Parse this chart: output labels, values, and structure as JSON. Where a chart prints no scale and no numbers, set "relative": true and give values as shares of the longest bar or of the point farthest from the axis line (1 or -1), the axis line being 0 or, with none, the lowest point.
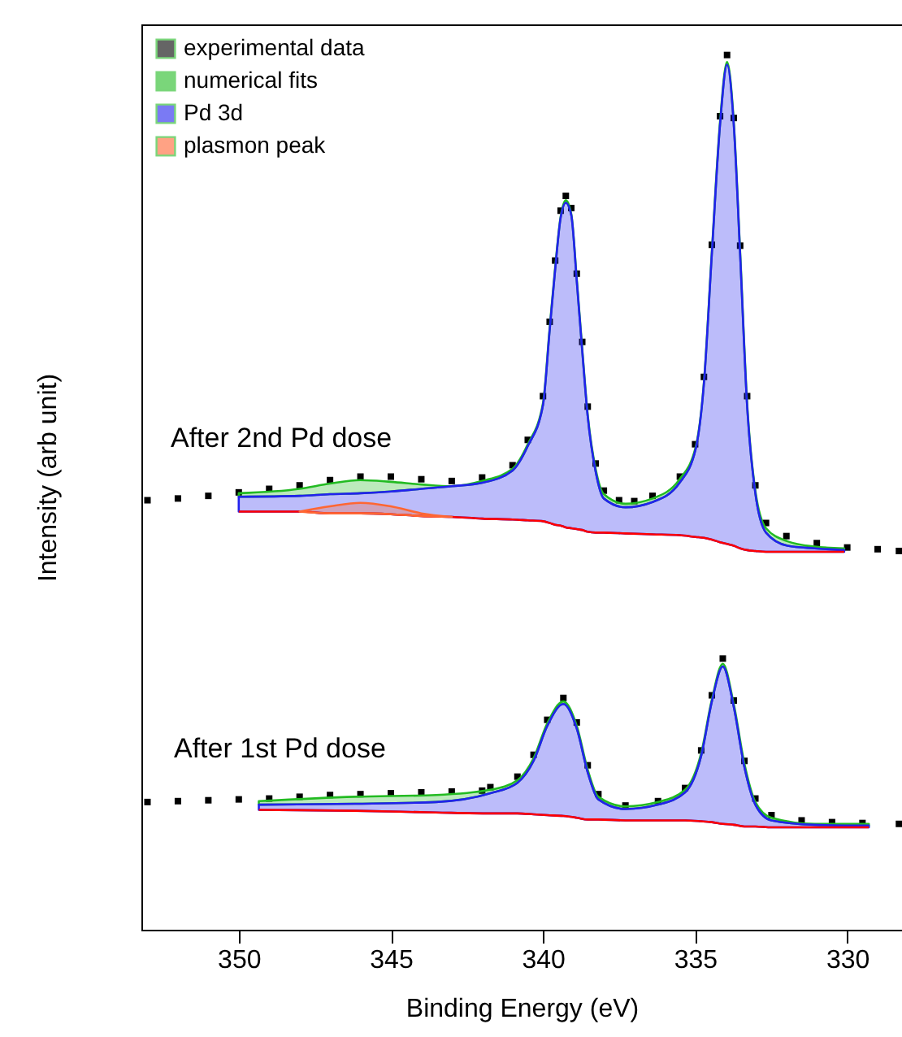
{
  "chart_data": {
    "type": "area",
    "relative": true,
    "xlabel": "Binding Energy (eV)",
    "ylabel": "Intensity (arb unit)",
    "xlim": [
      353.2,
      328.2
    ],
    "xticks": [
      350,
      345,
      340,
      335,
      330
    ],
    "tick_labels": "x",
    "legend": "top left",
    "annotations": [
      "After 2nd Pd dose",
      "After 1st Pd dose"
    ],
    "series": [
      {
        "name": "experimental data",
        "color": "#000000",
        "type": "scatter",
        "marker": "square",
        "x": [
          353,
          352,
          351,
          350,
          349,
          348,
          347,
          346,
          345,
          344,
          343,
          342,
          341,
          340.5,
          340,
          339.78,
          339.6,
          339.42,
          339.25,
          339.07,
          338.89,
          338.71,
          338.53,
          338.27,
          338,
          337.5,
          337,
          336.4,
          335.5,
          335,
          334.71,
          334.45,
          334.18,
          333.95,
          333.73,
          333.52,
          333.29,
          333.02,
          332.67,
          332,
          331,
          330,
          329,
          328.3
        ],
        "values": [
          0.491,
          0.493,
          0.496,
          0.5,
          0.504,
          0.508,
          0.514,
          0.518,
          0.518,
          0.515,
          0.513,
          0.517,
          0.531,
          0.56,
          0.61,
          0.695,
          0.765,
          0.822,
          0.839,
          0.825,
          0.75,
          0.672,
          0.598,
          0.533,
          0.502,
          0.491,
          0.49,
          0.496,
          0.518,
          0.555,
          0.632,
          0.783,
          0.93,
          1.0,
          0.928,
          0.782,
          0.61,
          0.508,
          0.465,
          0.45,
          0.442,
          0.437,
          0.435,
          0.433
        ]
      },
      {
        "name": "numerical fits",
        "color": "#22bb22",
        "x": [
          350,
          348,
          347,
          346,
          345,
          344,
          343,
          342,
          341,
          340.5,
          340,
          339.78,
          339.6,
          339.42,
          339.25,
          339.07,
          338.89,
          338.71,
          338.53,
          338.27,
          338,
          337.29,
          336.4,
          335.51,
          334.98,
          334.71,
          334.45,
          334.18,
          333.95,
          333.73,
          333.52,
          333.29,
          333.02,
          332.67,
          331.96,
          331.07,
          330.1
        ],
        "values": [
          0.499,
          0.504,
          0.51,
          0.514,
          0.512,
          0.509,
          0.507,
          0.513,
          0.527,
          0.555,
          0.602,
          0.688,
          0.757,
          0.815,
          0.834,
          0.818,
          0.744,
          0.664,
          0.589,
          0.527,
          0.498,
          0.487,
          0.493,
          0.515,
          0.552,
          0.626,
          0.775,
          0.924,
          0.992,
          0.924,
          0.775,
          0.602,
          0.502,
          0.459,
          0.444,
          0.438,
          0.436
        ]
      },
      {
        "name": "Pd 3d",
        "color": "#2222ee",
        "x": [
          350,
          348,
          347,
          346,
          345,
          344,
          343,
          342,
          341,
          340.5,
          340,
          339.78,
          339.6,
          339.42,
          339.25,
          339.07,
          338.89,
          338.71,
          338.53,
          338.27,
          338,
          337.29,
          336.4,
          335.51,
          334.98,
          334.71,
          334.45,
          334.18,
          333.95,
          333.73,
          333.52,
          333.29,
          333.02,
          332.67,
          331.96,
          331.07,
          330.1
        ],
        "values": [
          0.495,
          0.496,
          0.498,
          0.499,
          0.501,
          0.504,
          0.507,
          0.511,
          0.525,
          0.553,
          0.6,
          0.686,
          0.755,
          0.814,
          0.831,
          0.817,
          0.742,
          0.662,
          0.587,
          0.524,
          0.493,
          0.483,
          0.489,
          0.511,
          0.55,
          0.625,
          0.773,
          0.921,
          0.989,
          0.921,
          0.772,
          0.599,
          0.499,
          0.454,
          0.439,
          0.436,
          0.434
        ]
      },
      {
        "color": "#ff0000",
        "type": "line",
        "x": [
          350,
          348,
          347,
          346,
          345,
          344,
          343,
          342,
          341,
          340.5,
          340,
          339.78,
          339.6,
          339.42,
          339.25,
          339.07,
          338.89,
          338.71,
          338.53,
          338.27,
          338,
          337.29,
          336.4,
          335.51,
          334.98,
          334.71,
          334.45,
          334.18,
          333.95,
          333.73,
          333.52,
          333.29,
          333.02,
          332.67,
          331.96,
          331.07,
          330.1
        ],
        "values": [
          0.478,
          0.478,
          0.476,
          0.476,
          0.475,
          0.473,
          0.472,
          0.47,
          0.469,
          0.468,
          0.467,
          0.465,
          0.463,
          0.462,
          0.46,
          0.459,
          0.458,
          0.457,
          0.455,
          0.454,
          0.454,
          0.453,
          0.452,
          0.451,
          0.449,
          0.448,
          0.446,
          0.443,
          0.441,
          0.439,
          0.436,
          0.434,
          0.433,
          0.432,
          0.432,
          0.432,
          0.432
        ]
      },
      {
        "name": "plasmon peak",
        "color": "#ff6633",
        "x": [
          348,
          347,
          346,
          345,
          344,
          343
        ],
        "values": [
          0.478,
          0.484,
          0.488,
          0.484,
          0.476,
          0.472
        ]
      },
      {
        "color": "#000000",
        "type": "scatter",
        "marker": "square",
        "x": [
          353,
          352,
          351,
          350,
          349,
          348,
          347,
          346,
          345,
          344,
          343,
          342,
          341.73,
          340.84,
          340.31,
          339.86,
          339.33,
          338.89,
          338.53,
          338.18,
          337.29,
          336.22,
          335.33,
          334.8,
          334.45,
          334.09,
          333.73,
          333.38,
          333.02,
          332.49,
          331.5,
          330.5,
          329.5,
          328.3
        ],
        "values": [
          0.146,
          0.147,
          0.148,
          0.149,
          0.15,
          0.152,
          0.154,
          0.155,
          0.156,
          0.157,
          0.158,
          0.159,
          0.163,
          0.175,
          0.2,
          0.24,
          0.265,
          0.237,
          0.188,
          0.155,
          0.142,
          0.147,
          0.162,
          0.205,
          0.268,
          0.31,
          0.262,
          0.193,
          0.15,
          0.131,
          0.125,
          0.123,
          0.122,
          0.121
        ]
      },
      {
        "color": "#23bb22",
        "x": [
          349.34,
          346.18,
          343.52,
          341.73,
          340.84,
          340.31,
          339.86,
          339.33,
          338.89,
          338.53,
          338.18,
          337.29,
          336.22,
          335.33,
          334.8,
          334.45,
          334.09,
          333.73,
          333.38,
          333.02,
          332.49,
          331.07,
          329.29
        ],
        "values": [
          0.147,
          0.152,
          0.154,
          0.16,
          0.171,
          0.196,
          0.236,
          0.261,
          0.233,
          0.183,
          0.152,
          0.141,
          0.146,
          0.16,
          0.202,
          0.263,
          0.304,
          0.258,
          0.19,
          0.146,
          0.128,
          0.121,
          0.121
        ]
      },
      {
        "color": "#2222ed",
        "x": [
          349.34,
          346.18,
          343.52,
          341.73,
          340.84,
          340.31,
          339.86,
          339.33,
          338.89,
          338.53,
          338.18,
          337.29,
          336.22,
          335.33,
          334.8,
          334.45,
          334.09,
          333.73,
          333.38,
          333.02,
          332.49,
          331.07,
          329.29
        ],
        "values": [
          0.143,
          0.144,
          0.146,
          0.156,
          0.168,
          0.193,
          0.233,
          0.258,
          0.23,
          0.18,
          0.149,
          0.138,
          0.143,
          0.157,
          0.199,
          0.261,
          0.301,
          0.255,
          0.186,
          0.143,
          0.125,
          0.12,
          0.119
        ]
      },
      {
        "color": "#ff0000",
        "type": "line",
        "x": [
          349.34,
          346.18,
          343.52,
          341.73,
          340.84,
          340.31,
          339.86,
          339.33,
          338.89,
          338.53,
          338.18,
          337.29,
          336.22,
          335.33,
          334.8,
          334.45,
          334.09,
          333.73,
          333.38,
          333.02,
          332.49,
          331.07,
          329.29
        ],
        "values": [
          0.137,
          0.136,
          0.134,
          0.133,
          0.133,
          0.132,
          0.131,
          0.13,
          0.128,
          0.126,
          0.126,
          0.125,
          0.125,
          0.125,
          0.124,
          0.123,
          0.121,
          0.12,
          0.118,
          0.118,
          0.117,
          0.117,
          0.117
        ]
      }
    ]
  }
}
